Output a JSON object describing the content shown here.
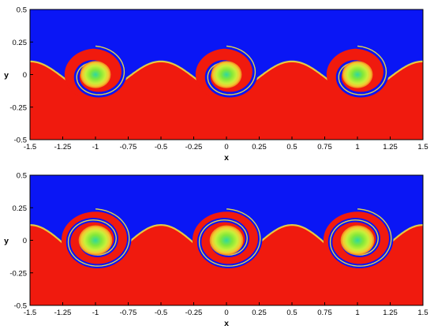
{
  "chart_data": [
    {
      "type": "heatmap",
      "title": "",
      "xlabel": "x",
      "ylabel": "y",
      "xlim": [
        -1.5,
        1.5
      ],
      "ylim": [
        -0.5,
        0.5
      ],
      "xticks": [
        "-1.5",
        "-1.25",
        "-1",
        "-0.75",
        "-0.5",
        "-0.25",
        "0",
        "0.25",
        "0.5",
        "0.75",
        "1",
        "1.25",
        "1.5"
      ],
      "yticks": [
        "0.5",
        "0.25",
        "0",
        "-0.25",
        "-0.5"
      ],
      "vortex_centers_x": [
        -1,
        0,
        1
      ],
      "vortex_center_y": 0,
      "interface_amplitude": 0.22,
      "spiral_turns": 1.3,
      "colors": {
        "upper_fluid": "#0a16f5",
        "lower_fluid": "#f01a0e",
        "core": "#7fe83a",
        "rim": "#f5e83a"
      }
    },
    {
      "type": "heatmap",
      "title": "",
      "xlabel": "x",
      "ylabel": "y",
      "xlim": [
        -1.5,
        1.5
      ],
      "ylim": [
        -0.5,
        0.5
      ],
      "xticks": [
        "-1.5",
        "-1.25",
        "-1",
        "-0.75",
        "-0.5",
        "-0.25",
        "0",
        "0.25",
        "0.5",
        "0.75",
        "1",
        "1.25",
        "1.5"
      ],
      "yticks": [
        "0.5",
        "0.25",
        "0",
        "-0.25",
        "-0.5"
      ],
      "vortex_centers_x": [
        -1,
        0,
        1
      ],
      "vortex_center_y": 0,
      "interface_amplitude": 0.25,
      "spiral_turns": 2.2,
      "colors": {
        "upper_fluid": "#0a16f5",
        "lower_fluid": "#f01a0e",
        "core": "#7fe83a",
        "rim": "#f5e83a"
      }
    }
  ]
}
